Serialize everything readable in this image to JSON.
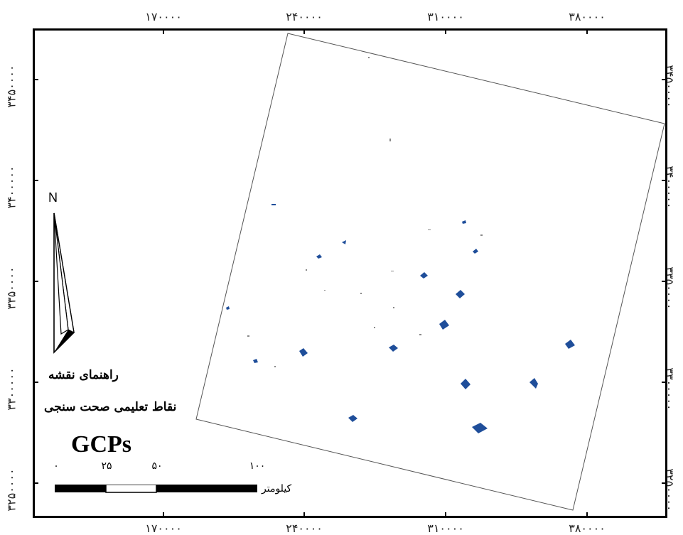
{
  "map": {
    "x_ticks": [
      "۱۷۰۰۰۰",
      "۲۴۰۰۰۰",
      "۳۱۰۰۰۰",
      "۳۸۰۰۰۰"
    ],
    "y_ticks": [
      "۳۴۵۰۰۰۰",
      "۳۴۰۰۰۰۰",
      "۳۳۵۰۰۰۰",
      "۳۳۰۰۰۰۰",
      "۳۲۵۰۰۰۰"
    ],
    "north_label": "N",
    "legend_title": "راهنمای نقشه",
    "legend_item": "نقاط تعلیمی صحت سنجی",
    "gcps_label": "GCPs",
    "scalebar": {
      "labels": [
        "۰",
        "۲۵",
        "۵۰",
        "۱۰۰"
      ],
      "unit": "کیلومتر"
    },
    "colors": {
      "gcp": "#1f4e9a",
      "frame": "#000000",
      "scene": "#555555"
    },
    "gcp_count": 21
  }
}
